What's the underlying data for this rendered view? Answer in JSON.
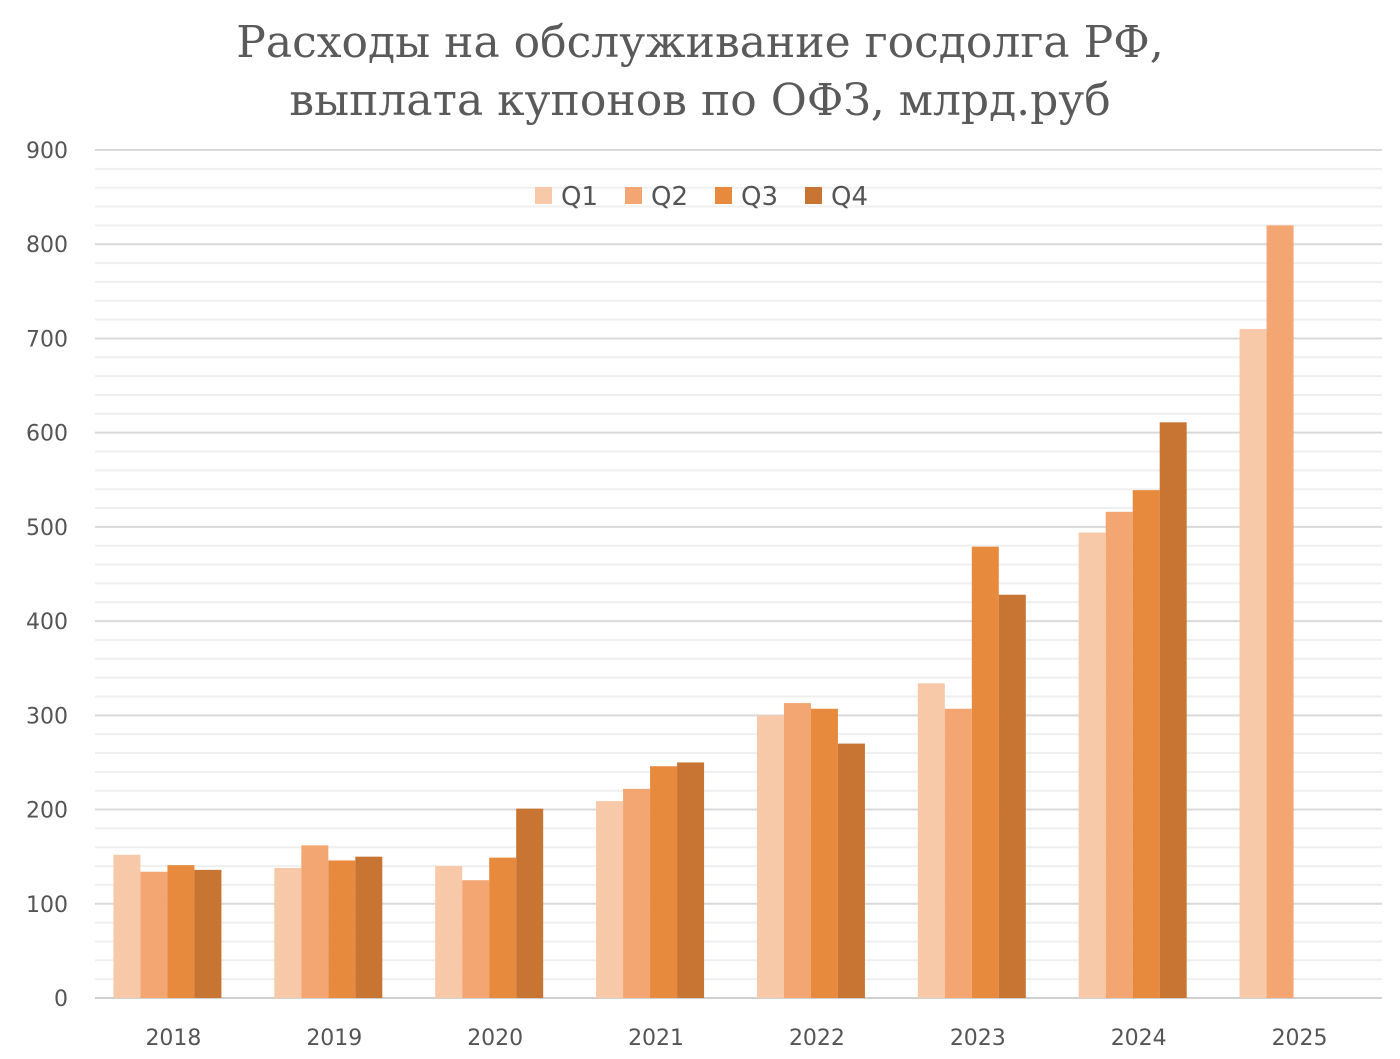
{
  "chart_data": {
    "type": "bar",
    "title_lines": [
      "Расходы на обслуживание госдолга РФ,",
      "выплата купонов по ОФЗ, млрд.руб"
    ],
    "categories": [
      "2018",
      "2019",
      "2020",
      "2021",
      "2022",
      "2023",
      "2024",
      "2025"
    ],
    "series": [
      {
        "name": "Q1",
        "color": "#f8c9a8",
        "values": [
          152,
          138,
          140,
          209,
          300,
          334,
          494,
          710
        ]
      },
      {
        "name": "Q2",
        "color": "#f4a672",
        "values": [
          134,
          162,
          125,
          222,
          313,
          307,
          516,
          820
        ]
      },
      {
        "name": "Q3",
        "color": "#e88a3e",
        "values": [
          141,
          146,
          149,
          246,
          307,
          479,
          539,
          null
        ]
      },
      {
        "name": "Q4",
        "color": "#c87533",
        "values": [
          136,
          150,
          201,
          250,
          270,
          428,
          611,
          null
        ]
      }
    ],
    "ylim": [
      0,
      900
    ],
    "yticks": [
      0,
      100,
      200,
      300,
      400,
      500,
      600,
      700,
      800,
      900
    ],
    "grid": true,
    "minor_grid_step": 20,
    "legend_position": "top-center",
    "xlabel": "",
    "ylabel": ""
  }
}
